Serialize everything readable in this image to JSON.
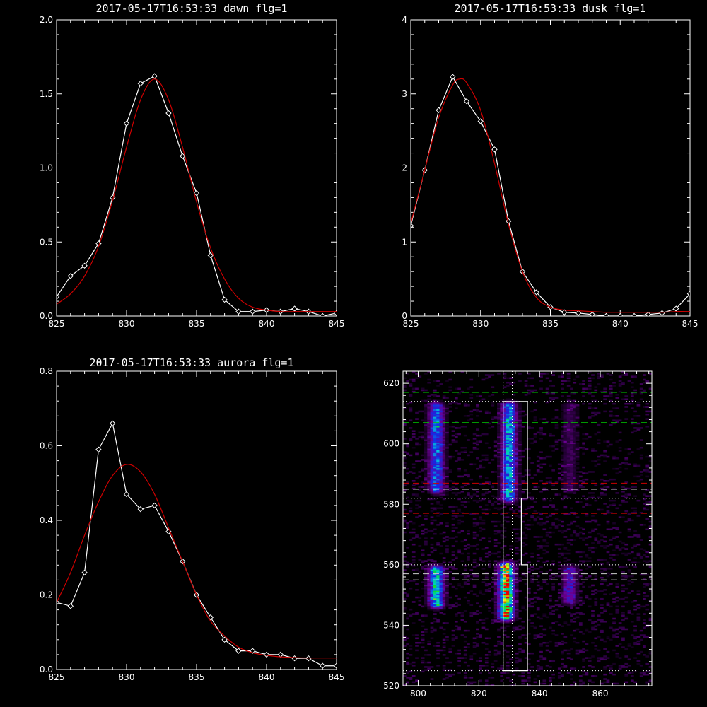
{
  "chart_data": [
    {
      "type": "line",
      "title": "2017-05-17T16:53:33 dawn flg=1",
      "xlim": [
        825,
        845
      ],
      "ylim": [
        0,
        2.0
      ],
      "xticks": [
        "825",
        "830",
        "835",
        "840",
        "845"
      ],
      "yticks": [
        "0.0",
        "0.5",
        "1.0",
        "1.5",
        "2.0"
      ],
      "series": [
        {
          "color": "#ffffff",
          "markers": "diamond",
          "x": [
            825,
            826,
            827,
            828,
            829,
            830,
            831,
            832,
            833,
            834,
            835,
            836,
            837,
            838,
            839,
            840,
            841,
            842,
            843,
            844,
            845
          ],
          "y": [
            0.13,
            0.27,
            0.34,
            0.49,
            0.8,
            1.3,
            1.57,
            1.62,
            1.37,
            1.08,
            0.83,
            0.41,
            0.11,
            0.03,
            0.03,
            0.04,
            0.03,
            0.05,
            0.03,
            0.0,
            0.02
          ]
        },
        {
          "color": "#cc0000",
          "markers": "none",
          "x": [
            825,
            826,
            827,
            828,
            829,
            830,
            831,
            832,
            833,
            834,
            835,
            836,
            837,
            838,
            839,
            840,
            841,
            842,
            843,
            844,
            845
          ],
          "y": [
            0.08,
            0.15,
            0.27,
            0.47,
            0.78,
            1.14,
            1.46,
            1.6,
            1.46,
            1.14,
            0.77,
            0.46,
            0.25,
            0.12,
            0.06,
            0.04,
            0.03,
            0.03,
            0.03,
            0.03,
            0.03
          ]
        }
      ]
    },
    {
      "type": "line",
      "title": "2017-05-17T16:53:33 dusk flg=1",
      "xlim": [
        825,
        845
      ],
      "ylim": [
        0,
        4
      ],
      "xticks": [
        "825",
        "830",
        "835",
        "840",
        "845"
      ],
      "yticks": [
        "0",
        "1",
        "2",
        "3",
        "4"
      ],
      "series": [
        {
          "color": "#ffffff",
          "markers": "diamond",
          "x": [
            825,
            826,
            827,
            828,
            829,
            830,
            831,
            832,
            833,
            834,
            835,
            836,
            837,
            838,
            839,
            840,
            841,
            842,
            843,
            844,
            845
          ],
          "y": [
            1.22,
            1.97,
            2.78,
            3.23,
            2.9,
            2.63,
            2.25,
            1.28,
            0.6,
            0.32,
            0.12,
            0.05,
            0.04,
            0.02,
            0.0,
            0.0,
            0.0,
            0.02,
            0.04,
            0.1,
            0.3
          ]
        },
        {
          "color": "#cc0000",
          "markers": "none",
          "x": [
            825,
            826,
            827,
            828,
            828.5,
            829,
            830,
            831,
            832,
            833,
            834,
            835,
            836,
            837,
            838,
            839,
            840,
            841,
            842,
            843,
            844,
            845
          ],
          "y": [
            1.25,
            1.97,
            2.68,
            3.12,
            3.2,
            3.15,
            2.78,
            2.06,
            1.24,
            0.6,
            0.25,
            0.12,
            0.08,
            0.07,
            0.06,
            0.05,
            0.05,
            0.05,
            0.05,
            0.05,
            0.06,
            0.06
          ]
        }
      ]
    },
    {
      "type": "line",
      "title": "2017-05-17T16:53:33 aurora flg=1",
      "xlim": [
        825,
        845
      ],
      "ylim": [
        0,
        0.8
      ],
      "xticks": [
        "825",
        "830",
        "835",
        "840",
        "845"
      ],
      "yticks": [
        "0.0",
        "0.2",
        "0.4",
        "0.6",
        "0.8"
      ],
      "series": [
        {
          "color": "#ffffff",
          "markers": "diamond",
          "x": [
            825,
            826,
            827,
            828,
            829,
            830,
            831,
            832,
            833,
            834,
            835,
            836,
            837,
            838,
            839,
            840,
            841,
            842,
            843,
            844,
            845
          ],
          "y": [
            0.18,
            0.17,
            0.26,
            0.59,
            0.66,
            0.47,
            0.43,
            0.44,
            0.37,
            0.29,
            0.2,
            0.14,
            0.08,
            0.05,
            0.05,
            0.04,
            0.04,
            0.03,
            0.03,
            0.01,
            0.01
          ]
        },
        {
          "color": "#cc0000",
          "markers": "none",
          "x": [
            825,
            826,
            827,
            828,
            829,
            830,
            831,
            832,
            833,
            834,
            835,
            836,
            837,
            838,
            839,
            840,
            841,
            842,
            843,
            844,
            845
          ],
          "y": [
            0.18,
            0.26,
            0.36,
            0.45,
            0.52,
            0.55,
            0.53,
            0.47,
            0.38,
            0.29,
            0.2,
            0.13,
            0.09,
            0.06,
            0.045,
            0.038,
            0.034,
            0.032,
            0.031,
            0.031,
            0.031
          ]
        }
      ]
    },
    {
      "type": "heatmap",
      "title": "",
      "xlim": [
        795,
        877
      ],
      "ylim": [
        520,
        624
      ],
      "xticks": [
        "800",
        "820",
        "840",
        "860"
      ],
      "yticks": [
        "520",
        "540",
        "560",
        "580",
        "600",
        "620"
      ],
      "blobs": [
        {
          "x": 806,
          "y_from": 585,
          "y_to": 612,
          "intensity": 0.55
        },
        {
          "x": 830,
          "y_from": 582,
          "y_to": 612,
          "intensity": 0.62
        },
        {
          "x": 806,
          "y_from": 547,
          "y_to": 558,
          "intensity": 0.7
        },
        {
          "x": 829,
          "y_from": 543,
          "y_to": 559,
          "intensity": 1.0
        },
        {
          "x": 850,
          "y_from": 585,
          "y_to": 612,
          "intensity": 0.15
        },
        {
          "x": 850,
          "y_from": 548,
          "y_to": 558,
          "intensity": 0.35
        }
      ],
      "hlines": [
        {
          "y": 617,
          "color": "#00cc00",
          "style": "dash"
        },
        {
          "y": 607,
          "color": "#00cc00",
          "style": "dash"
        },
        {
          "y": 587,
          "color": "#cc0000",
          "style": "dash"
        },
        {
          "y": 585,
          "color": "#ffffff",
          "style": "dash"
        },
        {
          "y": 577,
          "color": "#cc0000",
          "style": "dash"
        },
        {
          "y": 557,
          "color": "#cccccc",
          "style": "dash"
        },
        {
          "y": 555,
          "color": "#ffffff",
          "style": "dash"
        },
        {
          "y": 547,
          "color": "#00cc00",
          "style": "dash"
        },
        {
          "y": 614,
          "color": "#ffffff",
          "style": "dot"
        },
        {
          "y": 582,
          "color": "#ffffff",
          "style": "dot"
        },
        {
          "y": 560,
          "color": "#ffffff",
          "style": "dot"
        },
        {
          "y": 525,
          "color": "#ffffff",
          "style": "dot"
        }
      ],
      "vlines": [
        {
          "x": 828,
          "color": "#ffffff",
          "style": "dot"
        },
        {
          "x": 831,
          "color": "#ffffff",
          "style": "dot"
        }
      ],
      "region_outline": [
        [
          828,
          614
        ],
        [
          836,
          614
        ],
        [
          836,
          582
        ],
        [
          834,
          582
        ],
        [
          834,
          560
        ],
        [
          836,
          560
        ],
        [
          836,
          525
        ],
        [
          828,
          525
        ]
      ]
    }
  ]
}
